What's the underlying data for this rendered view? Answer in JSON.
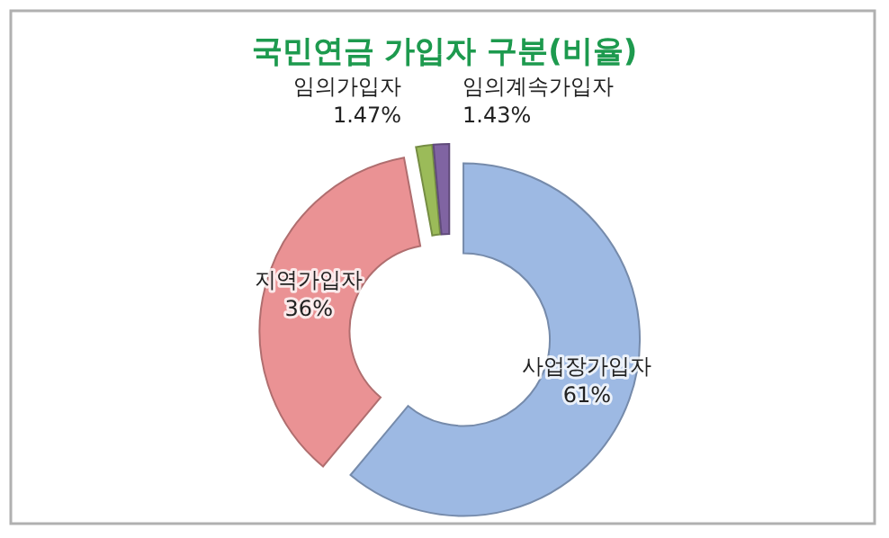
{
  "chart_data": {
    "type": "donut",
    "title": "국민연금 가입자 구분(비율)",
    "categories": [
      "사업장가입자",
      "지역가입자",
      "임의가입자",
      "임의계속가입자"
    ],
    "values": [
      61,
      36,
      1.47,
      1.43
    ],
    "value_labels": [
      "61%",
      "36%",
      "1.47%",
      "1.43%"
    ],
    "colors": [
      "#9db9e3",
      "#ea9294",
      "#9bbb59",
      "#8064a2"
    ]
  }
}
